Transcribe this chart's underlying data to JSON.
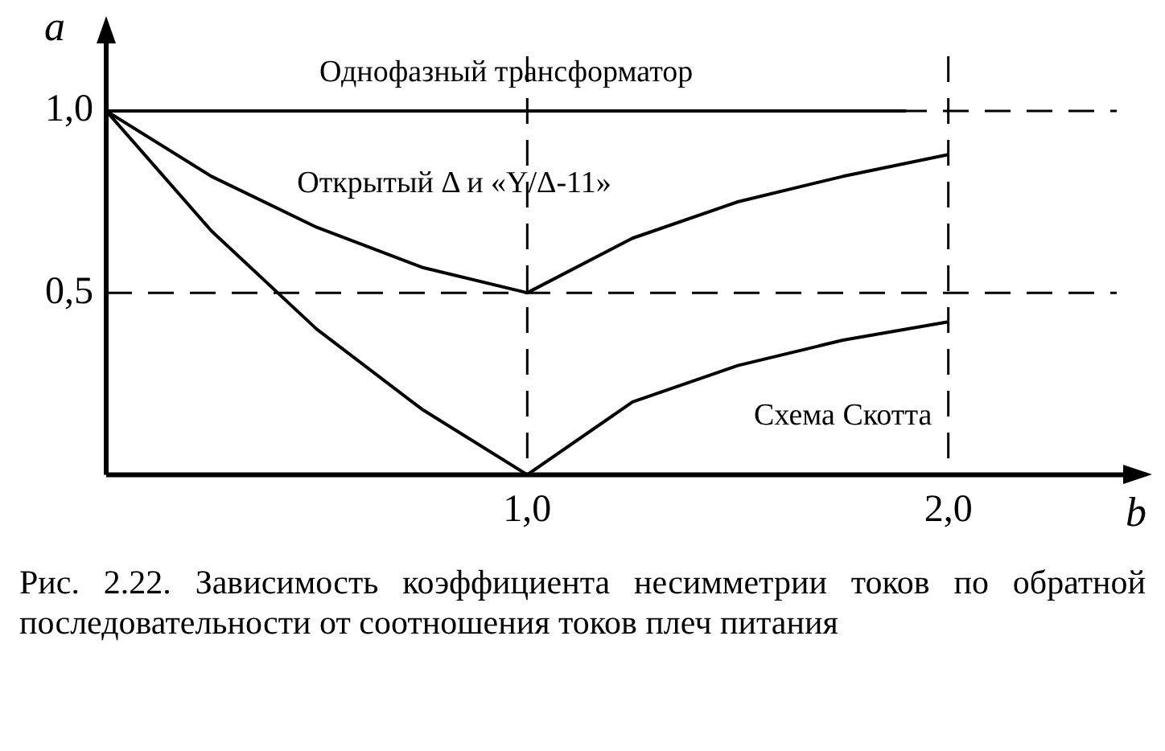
{
  "chart_data": {
    "type": "line",
    "xlabel": "b",
    "ylabel": "a",
    "xlim": [
      0,
      2.4
    ],
    "ylim": [
      0,
      1.15
    ],
    "xticks": [
      {
        "value": 1,
        "label": "1,0"
      },
      {
        "value": 2,
        "label": "2,0"
      }
    ],
    "yticks": [
      {
        "value": 0.5,
        "label": "0,5"
      },
      {
        "value": 1,
        "label": "1,0"
      }
    ],
    "grid": false,
    "legend": false,
    "marker": "none",
    "line_style": "solid",
    "series": [
      {
        "name": "Однофазный трансформатор",
        "color": "#000000",
        "x": [
          0,
          1.9
        ],
        "values": [
          1,
          1
        ]
      },
      {
        "name": "Открытый Δ и «Y/Δ-11»",
        "color": "#000000",
        "x": [
          0,
          0.25,
          0.5,
          0.75,
          1,
          1.25,
          1.5,
          1.75,
          2
        ],
        "values": [
          1,
          0.82,
          0.68,
          0.57,
          0.5,
          0.65,
          0.75,
          0.82,
          0.88
        ]
      },
      {
        "name": "Схема Скотта",
        "color": "#000000",
        "x": [
          0,
          0.25,
          0.5,
          0.75,
          1,
          1.25,
          1.5,
          1.75,
          2
        ],
        "values": [
          1,
          0.67,
          0.4,
          0.18,
          0,
          0.2,
          0.3,
          0.37,
          0.42
        ]
      }
    ],
    "ref_lines": [
      {
        "axis": "y",
        "value": 1,
        "line_style": "dashed"
      },
      {
        "axis": "y",
        "value": 0.5,
        "line_style": "dashed"
      },
      {
        "axis": "x",
        "value": 1,
        "line_style": "dashed"
      },
      {
        "axis": "x",
        "value": 2,
        "line_style": "dashed"
      }
    ],
    "annotations": [
      "Рис. 2.22. Зависимость коэффициента несимметрии токов по обратной последовательности от соотношения токов плеч питания"
    ]
  }
}
